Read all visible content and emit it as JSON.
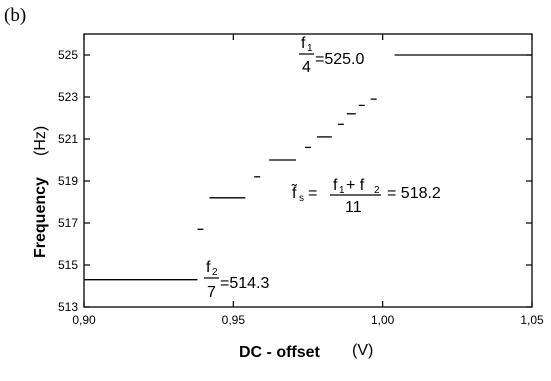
{
  "panel_label": "(b)",
  "chart_data": {
    "type": "line",
    "title": "",
    "xlabel": "DC - offset",
    "xunit": "(V)",
    "ylabel": "Frequency",
    "yunit": "(Hz)",
    "xlim": [
      0.9,
      1.05
    ],
    "ylim": [
      513,
      526
    ],
    "x_ticks": [
      "0,90",
      "0,95",
      "1,00",
      "1,05"
    ],
    "y_ticks": [
      "513",
      "515",
      "517",
      "519",
      "521",
      "523",
      "525"
    ],
    "x_tick_values": [
      0.9,
      0.95,
      1.0,
      1.05
    ],
    "y_tick_values": [
      513,
      515,
      517,
      519,
      521,
      523,
      525
    ],
    "grid": false,
    "color": "#000000",
    "steps": [
      {
        "x": [
          0.9,
          0.938
        ],
        "y": 514.3
      },
      {
        "x": [
          0.938,
          0.94
        ],
        "y": 516.7
      },
      {
        "x": [
          0.942,
          0.954
        ],
        "y": 518.2
      },
      {
        "x": [
          0.957,
          0.959
        ],
        "y": 519.2
      },
      {
        "x": [
          0.962,
          0.971
        ],
        "y": 520.0
      },
      {
        "x": [
          0.974,
          0.976
        ],
        "y": 520.6
      },
      {
        "x": [
          0.978,
          0.983
        ],
        "y": 521.1
      },
      {
        "x": [
          0.985,
          0.987
        ],
        "y": 521.7
      },
      {
        "x": [
          0.988,
          0.991
        ],
        "y": 522.2
      },
      {
        "x": [
          0.992,
          0.994
        ],
        "y": 522.6
      },
      {
        "x": [
          0.996,
          0.998
        ],
        "y": 522.9
      },
      {
        "x": [
          1.004,
          1.05
        ],
        "y": 525.0
      }
    ],
    "annotations": {
      "f1": {
        "num": "f",
        "num_sub": "1",
        "den": "4",
        "value": "=525.0"
      },
      "f2": {
        "num": "f",
        "num_sub": "2",
        "den": "7",
        "value": "=514.3"
      },
      "fs": {
        "lhs": "f̃",
        "lhs_sub": "s",
        "eq": "=",
        "num_a": "f",
        "num_a_sub": "1",
        "plus": "+ f",
        "num_b_sub": "2",
        "den": "11",
        "value": "= 518.2"
      }
    }
  }
}
